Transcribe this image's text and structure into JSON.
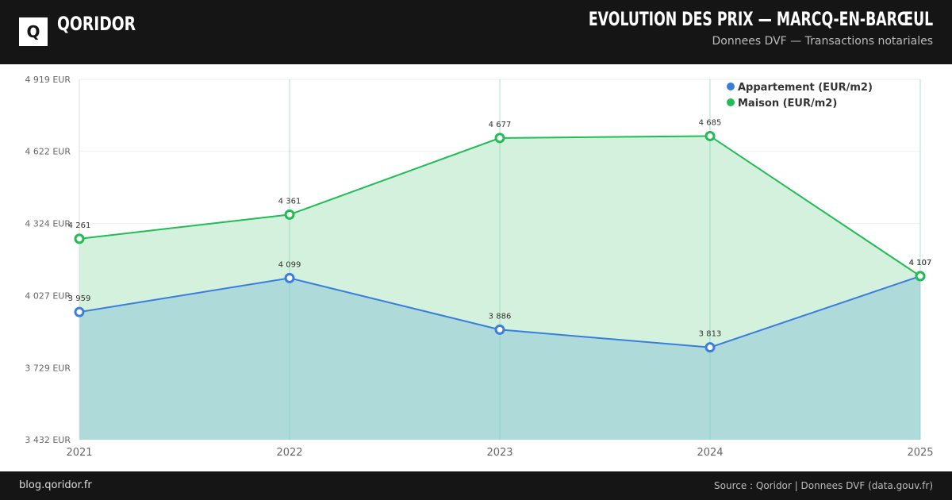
{
  "header": {
    "logo_letter": "Q",
    "brand": "QORIDOR",
    "title": "EVOLUTION DES PRIX — MARCQ-EN-BARŒUL",
    "subtitle": "Donnees DVF — Transactions notariales"
  },
  "footer": {
    "left": "blog.qoridor.fr",
    "right": "Source : Qoridor | Donnees DVF (data.gouv.fr)"
  },
  "colors": {
    "appartement": "#3b7ddd",
    "maison": "#22bb55",
    "maison_fill": "#d1f0da",
    "appartement_fill": "#aedbd9"
  },
  "chart_data": {
    "type": "area",
    "x": [
      "2021",
      "2022",
      "2023",
      "2024",
      "2025"
    ],
    "ylim": [
      3432,
      4919
    ],
    "yticks": [
      3432,
      3729,
      4027,
      4324,
      4622,
      4919
    ],
    "ytick_labels": [
      "3 432 EUR",
      "3 729 EUR",
      "4 027 EUR",
      "4 324 EUR",
      "4 622 EUR",
      "4 919 EUR"
    ],
    "legend_position": "top-right",
    "grid": true,
    "series": [
      {
        "name": "Appartement (EUR/m2)",
        "color": "#3b7ddd",
        "values": [
          3959,
          4099,
          3886,
          3813,
          4107
        ],
        "labels": [
          "3 959",
          "4 099",
          "3 886",
          "3 813",
          "4 107"
        ]
      },
      {
        "name": "Maison (EUR/m2)",
        "color": "#22bb55",
        "values": [
          4261,
          4361,
          4677,
          4685,
          4107
        ],
        "labels": [
          "4 261",
          "4 361",
          "4 677",
          "4 685",
          "4 107"
        ]
      }
    ]
  }
}
